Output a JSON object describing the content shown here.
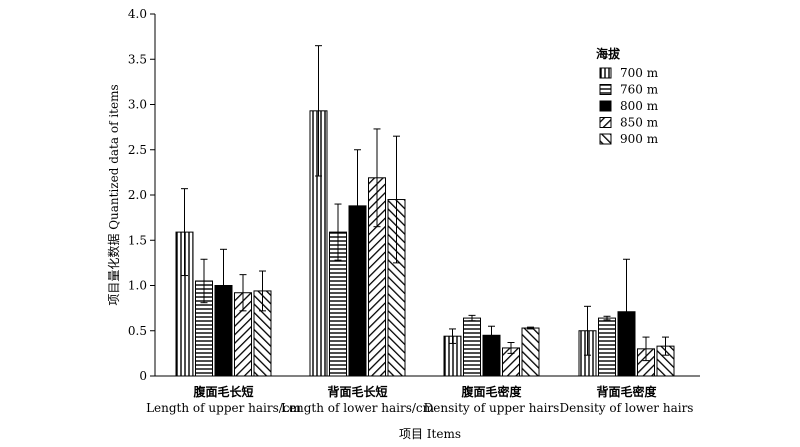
{
  "chart_data": {
    "type": "bar",
    "categories": [
      {
        "cn": "腹面毛长短",
        "en": "Length of upper hairs/cm"
      },
      {
        "cn": "背面毛长短",
        "en": "Length of lower hairs/cm"
      },
      {
        "cn": "腹面毛密度",
        "en": "Density of upper hairs"
      },
      {
        "cn": "背面毛密度",
        "en": "Density of lower hairs"
      }
    ],
    "series": [
      {
        "name": "700 m",
        "pattern": "vertical",
        "values": [
          1.59,
          2.93,
          0.44,
          0.5
        ],
        "errors": [
          0.48,
          0.72,
          0.08,
          0.27
        ]
      },
      {
        "name": "760 m",
        "pattern": "horizontal",
        "values": [
          1.05,
          1.59,
          0.64,
          0.64
        ],
        "errors": [
          0.24,
          0.31,
          0.03,
          0.02
        ]
      },
      {
        "name": "800 m",
        "pattern": "solid",
        "values": [
          1.0,
          1.88,
          0.45,
          0.71
        ],
        "errors": [
          0.4,
          0.62,
          0.1,
          0.58
        ]
      },
      {
        "name": "850 m",
        "pattern": "diag-up",
        "values": [
          0.92,
          2.19,
          0.31,
          0.3
        ],
        "errors": [
          0.2,
          0.54,
          0.06,
          0.13
        ]
      },
      {
        "name": "900 m",
        "pattern": "diag-down",
        "values": [
          0.94,
          1.95,
          0.53,
          0.33
        ],
        "errors": [
          0.22,
          0.7,
          0.01,
          0.1
        ]
      }
    ],
    "xlabel": "项目 Items",
    "ylabel": "项目量化数据 Quantized data of items",
    "ylim": [
      0,
      4.0
    ],
    "yticks": [
      "0",
      "0.5",
      "1.0",
      "1.5",
      "2.0",
      "2.5",
      "3.0",
      "3.5",
      "4.0"
    ],
    "legend": {
      "title": "海拔",
      "placement": "top-right"
    },
    "grid": false
  }
}
